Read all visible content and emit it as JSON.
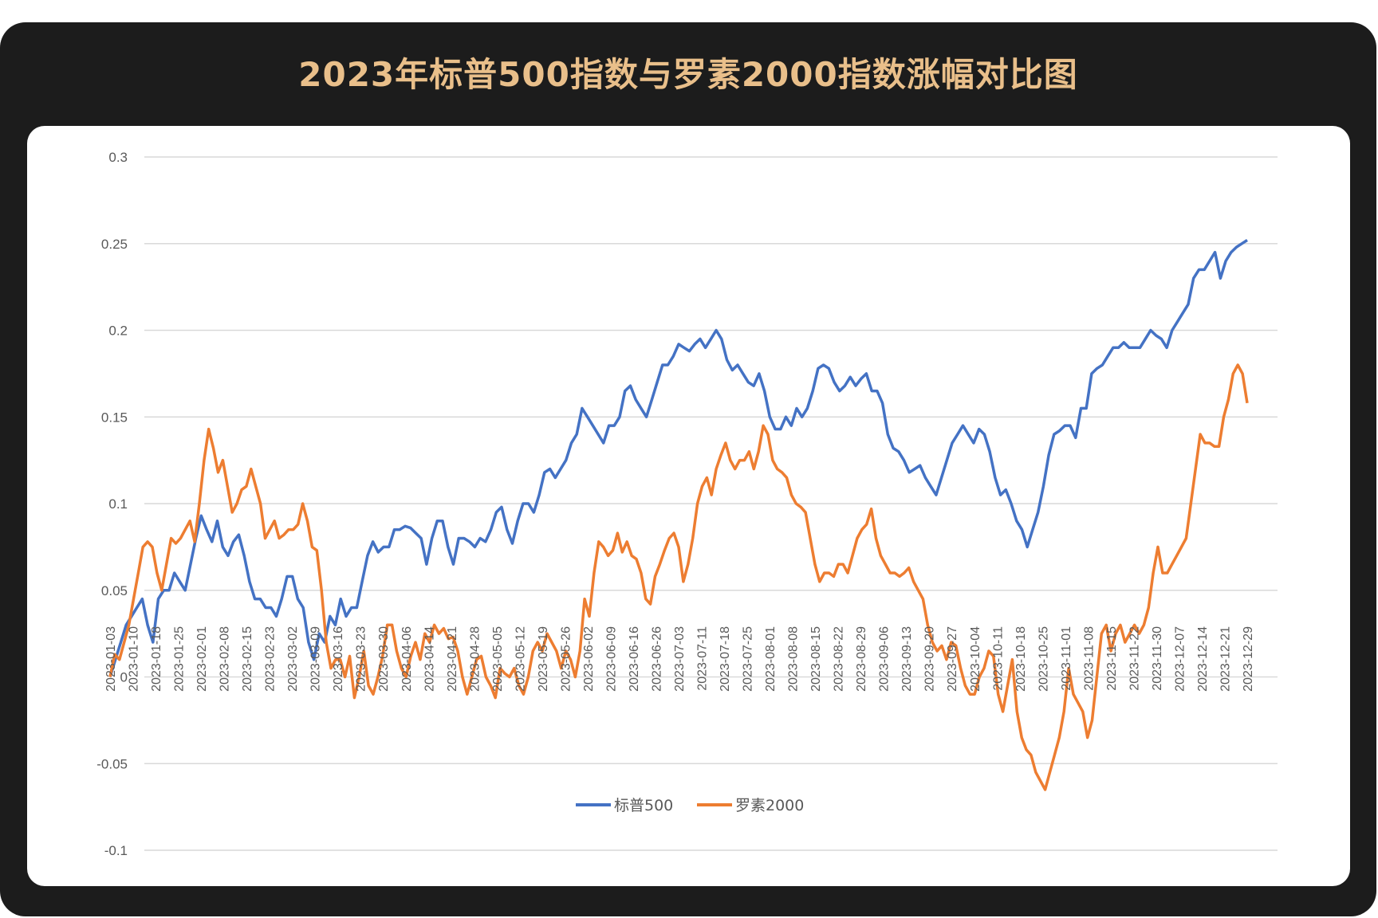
{
  "title": "2023年标普500指数与罗素2000指数涨幅对比图",
  "colors": {
    "background": "#1c1c1c",
    "title": "#e9bf8a",
    "panel": "#ffffff",
    "grid": "#d9d9d9",
    "sp500": "#4472c4",
    "russell": "#ed7d31"
  },
  "chart_data": {
    "type": "line",
    "title": "2023年标普500指数与罗素2000指数涨幅对比图",
    "xlabel": "",
    "ylabel": "",
    "ylim": [
      -0.1,
      0.3
    ],
    "y_ticks": [
      "-0.1",
      "-0.05",
      "0",
      "0.05",
      "0.1",
      "0.15",
      "0.2",
      "0.25",
      "0.3"
    ],
    "x_tick_labels": [
      "2023-01-03",
      "2023-01-10",
      "2023-01-18",
      "2023-01-25",
      "2023-02-01",
      "2023-02-08",
      "2023-02-15",
      "2023-02-23",
      "2023-03-02",
      "2023-03-09",
      "2023-03-16",
      "2023-03-23",
      "2023-03-30",
      "2023-04-06",
      "2023-04-14",
      "2023-04-21",
      "2023-04-28",
      "2023-05-05",
      "2023-05-12",
      "2023-05-19",
      "2023-05-26",
      "2023-06-02",
      "2023-06-09",
      "2023-06-16",
      "2023-06-26",
      "2023-07-03",
      "2023-07-11",
      "2023-07-18",
      "2023-07-25",
      "2023-08-01",
      "2023-08-08",
      "2023-08-15",
      "2023-08-22",
      "2023-08-29",
      "2023-09-06",
      "2023-09-13",
      "2023-09-20",
      "2023-09-27",
      "2023-10-04",
      "2023-10-11",
      "2023-10-18",
      "2023-10-25",
      "2023-11-01",
      "2023-11-08",
      "2023-11-15",
      "2023-11-22",
      "2023-11-30",
      "2023-12-07",
      "2023-12-14",
      "2023-12-21",
      "2023-12-29"
    ],
    "grid": true,
    "legend_position": "bottom",
    "series": [
      {
        "name": "标普500",
        "color": "#4472c4",
        "values": [
          0,
          0.01,
          0.02,
          0.03,
          0.035,
          0.04,
          0.045,
          0.03,
          0.02,
          0.045,
          0.05,
          0.05,
          0.06,
          0.055,
          0.05,
          0.065,
          0.08,
          0.093,
          0.085,
          0.078,
          0.09,
          0.075,
          0.07,
          0.078,
          0.082,
          0.07,
          0.055,
          0.045,
          0.045,
          0.04,
          0.04,
          0.035,
          0.045,
          0.058,
          0.058,
          0.045,
          0.04,
          0.02,
          0.01,
          0.025,
          0.02,
          0.035,
          0.03,
          0.045,
          0.035,
          0.04,
          0.04,
          0.055,
          0.07,
          0.078,
          0.072,
          0.075,
          0.075,
          0.085,
          0.085,
          0.087,
          0.086,
          0.083,
          0.08,
          0.065,
          0.08,
          0.09,
          0.09,
          0.075,
          0.065,
          0.08,
          0.08,
          0.078,
          0.075,
          0.08,
          0.078,
          0.085,
          0.095,
          0.098,
          0.085,
          0.077,
          0.09,
          0.1,
          0.1,
          0.095,
          0.105,
          0.118,
          0.12,
          0.115,
          0.12,
          0.125,
          0.135,
          0.14,
          0.155,
          0.15,
          0.145,
          0.14,
          0.135,
          0.145,
          0.145,
          0.15,
          0.165,
          0.168,
          0.16,
          0.155,
          0.15,
          0.16,
          0.17,
          0.18,
          0.18,
          0.185,
          0.192,
          0.19,
          0.188,
          0.192,
          0.195,
          0.19,
          0.195,
          0.2,
          0.195,
          0.183,
          0.177,
          0.18,
          0.175,
          0.17,
          0.168,
          0.175,
          0.165,
          0.15,
          0.143,
          0.143,
          0.15,
          0.145,
          0.155,
          0.15,
          0.155,
          0.165,
          0.178,
          0.18,
          0.178,
          0.17,
          0.165,
          0.168,
          0.173,
          0.168,
          0.172,
          0.175,
          0.165,
          0.165,
          0.158,
          0.14,
          0.132,
          0.13,
          0.125,
          0.118,
          0.12,
          0.122,
          0.115,
          0.11,
          0.105,
          0.115,
          0.125,
          0.135,
          0.14,
          0.145,
          0.14,
          0.135,
          0.143,
          0.14,
          0.13,
          0.115,
          0.105,
          0.108,
          0.1,
          0.09,
          0.085,
          0.075,
          0.085,
          0.095,
          0.11,
          0.128,
          0.14,
          0.142,
          0.145,
          0.145,
          0.138,
          0.155,
          0.155,
          0.175,
          0.178,
          0.18,
          0.185,
          0.19,
          0.19,
          0.193,
          0.19,
          0.19,
          0.19,
          0.195,
          0.2,
          0.197,
          0.195,
          0.19,
          0.2,
          0.205,
          0.21,
          0.215,
          0.23,
          0.235,
          0.235,
          0.24,
          0.245,
          0.23,
          0.24,
          0.245,
          0.248,
          0.25,
          0.252
        ]
      },
      {
        "name": "罗素2000",
        "color": "#ed7d31",
        "values": [
          0,
          0.013,
          0.01,
          0.02,
          0.03,
          0.045,
          0.06,
          0.075,
          0.078,
          0.075,
          0.06,
          0.05,
          0.065,
          0.08,
          0.077,
          0.08,
          0.085,
          0.09,
          0.078,
          0.1,
          0.125,
          0.143,
          0.132,
          0.118,
          0.125,
          0.11,
          0.095,
          0.1,
          0.108,
          0.11,
          0.12,
          0.11,
          0.1,
          0.08,
          0.085,
          0.09,
          0.08,
          0.082,
          0.085,
          0.085,
          0.088,
          0.1,
          0.09,
          0.075,
          0.073,
          0.05,
          0.02,
          0.005,
          0.01,
          0.01,
          0.0,
          0.012,
          -0.012,
          0.0,
          0.015,
          -0.005,
          -0.01,
          0.0,
          0.012,
          0.03,
          0.03,
          0.015,
          0.005,
          0.0,
          0.012,
          0.02,
          0.01,
          0.025,
          0.02,
          0.03,
          0.025,
          0.028,
          0.022,
          0.023,
          0.015,
          0.0,
          -0.01,
          0.0,
          0.01,
          0.012,
          0.0,
          -0.005,
          -0.012,
          0.005,
          0.002,
          0.0,
          0.005,
          -0.005,
          -0.01,
          0.0,
          0.015,
          0.02,
          0.015,
          0.025,
          0.02,
          0.015,
          0.005,
          0.015,
          0.01,
          0.0,
          0.015,
          0.045,
          0.035,
          0.06,
          0.078,
          0.075,
          0.07,
          0.073,
          0.083,
          0.072,
          0.078,
          0.07,
          0.068,
          0.06,
          0.045,
          0.042,
          0.058,
          0.065,
          0.073,
          0.08,
          0.083,
          0.075,
          0.055,
          0.065,
          0.08,
          0.1,
          0.11,
          0.115,
          0.105,
          0.12,
          0.128,
          0.135,
          0.125,
          0.12,
          0.125,
          0.125,
          0.13,
          0.12,
          0.13,
          0.145,
          0.14,
          0.125,
          0.12,
          0.118,
          0.115,
          0.105,
          0.1,
          0.098,
          0.095,
          0.08,
          0.065,
          0.055,
          0.06,
          0.06,
          0.058,
          0.065,
          0.065,
          0.06,
          0.07,
          0.08,
          0.085,
          0.088,
          0.097,
          0.08,
          0.07,
          0.065,
          0.06,
          0.06,
          0.058,
          0.06,
          0.063,
          0.055,
          0.05,
          0.045,
          0.03,
          0.02,
          0.015,
          0.018,
          0.01,
          0.02,
          0.018,
          0.005,
          -0.005,
          -0.01,
          -0.01,
          0.0,
          0.005,
          0.015,
          0.012,
          -0.01,
          -0.02,
          -0.005,
          0.01,
          -0.02,
          -0.035,
          -0.042,
          -0.045,
          -0.055,
          -0.06,
          -0.065,
          -0.055,
          -0.045,
          -0.035,
          -0.02,
          0.005,
          -0.01,
          -0.015,
          -0.02,
          -0.035,
          -0.025,
          0.0,
          0.025,
          0.03,
          0.015,
          0.025,
          0.03,
          0.02,
          0.025,
          0.03,
          0.025,
          0.03,
          0.04,
          0.06,
          0.075,
          0.06,
          0.06,
          0.065,
          0.07,
          0.075,
          0.08,
          0.1,
          0.12,
          0.14,
          0.135,
          0.135,
          0.133,
          0.133,
          0.15,
          0.16,
          0.175,
          0.18,
          0.175,
          0.158
        ]
      }
    ]
  }
}
